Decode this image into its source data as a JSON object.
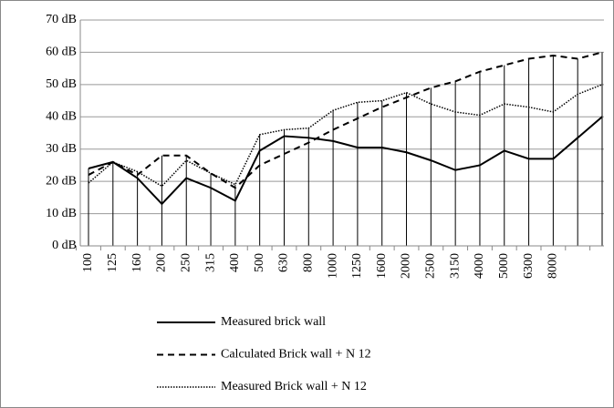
{
  "chart_data": {
    "type": "line",
    "categories": [
      "100",
      "125",
      "160",
      "200",
      "250",
      "315",
      "400",
      "500",
      "630",
      "800",
      "1000",
      "1250",
      "1600",
      "2000",
      "2500",
      "3150",
      "4000",
      "5000",
      "6300",
      "8000",
      null,
      null
    ],
    "series": [
      {
        "name": "Measured brick wall",
        "color": "#000000",
        "dash": "solid",
        "values": [
          24,
          26,
          21,
          13,
          21,
          18,
          14,
          29.5,
          34,
          33.5,
          32.5,
          30.5,
          30.5,
          29,
          26.5,
          23.5,
          25,
          29.5,
          27,
          27,
          33.5,
          40
        ]
      },
      {
        "name": "Calculated Brick wall + N 12",
        "color": "#000000",
        "dash": "dashed",
        "values": [
          22,
          26,
          22,
          28,
          28,
          22.5,
          18,
          25,
          28.5,
          32,
          36,
          39.5,
          43,
          46,
          49,
          51,
          54,
          56,
          58,
          59,
          58,
          60
        ]
      },
      {
        "name": "Measured Brick wall + N 12",
        "color": "#000000",
        "dash": "dotted",
        "values": [
          19.5,
          26,
          23,
          18.5,
          26.5,
          22.5,
          19,
          34.5,
          36,
          36.5,
          42,
          44.5,
          45,
          47.5,
          44,
          41.5,
          40.5,
          44,
          43,
          41.5,
          47,
          50
        ]
      }
    ],
    "ylim": [
      0,
      70
    ],
    "yticks": [
      {
        "value": 0,
        "label": "0 dB"
      },
      {
        "value": 10,
        "label": "10 dB"
      },
      {
        "value": 20,
        "label": "20 dB"
      },
      {
        "value": 30,
        "label": "30 dB"
      },
      {
        "value": 40,
        "label": "40 dB"
      },
      {
        "value": 50,
        "label": "50 dB"
      },
      {
        "value": 60,
        "label": "60 dB"
      },
      {
        "value": 70,
        "label": "70 dB"
      }
    ],
    "grid": true,
    "legend": "bottom"
  }
}
